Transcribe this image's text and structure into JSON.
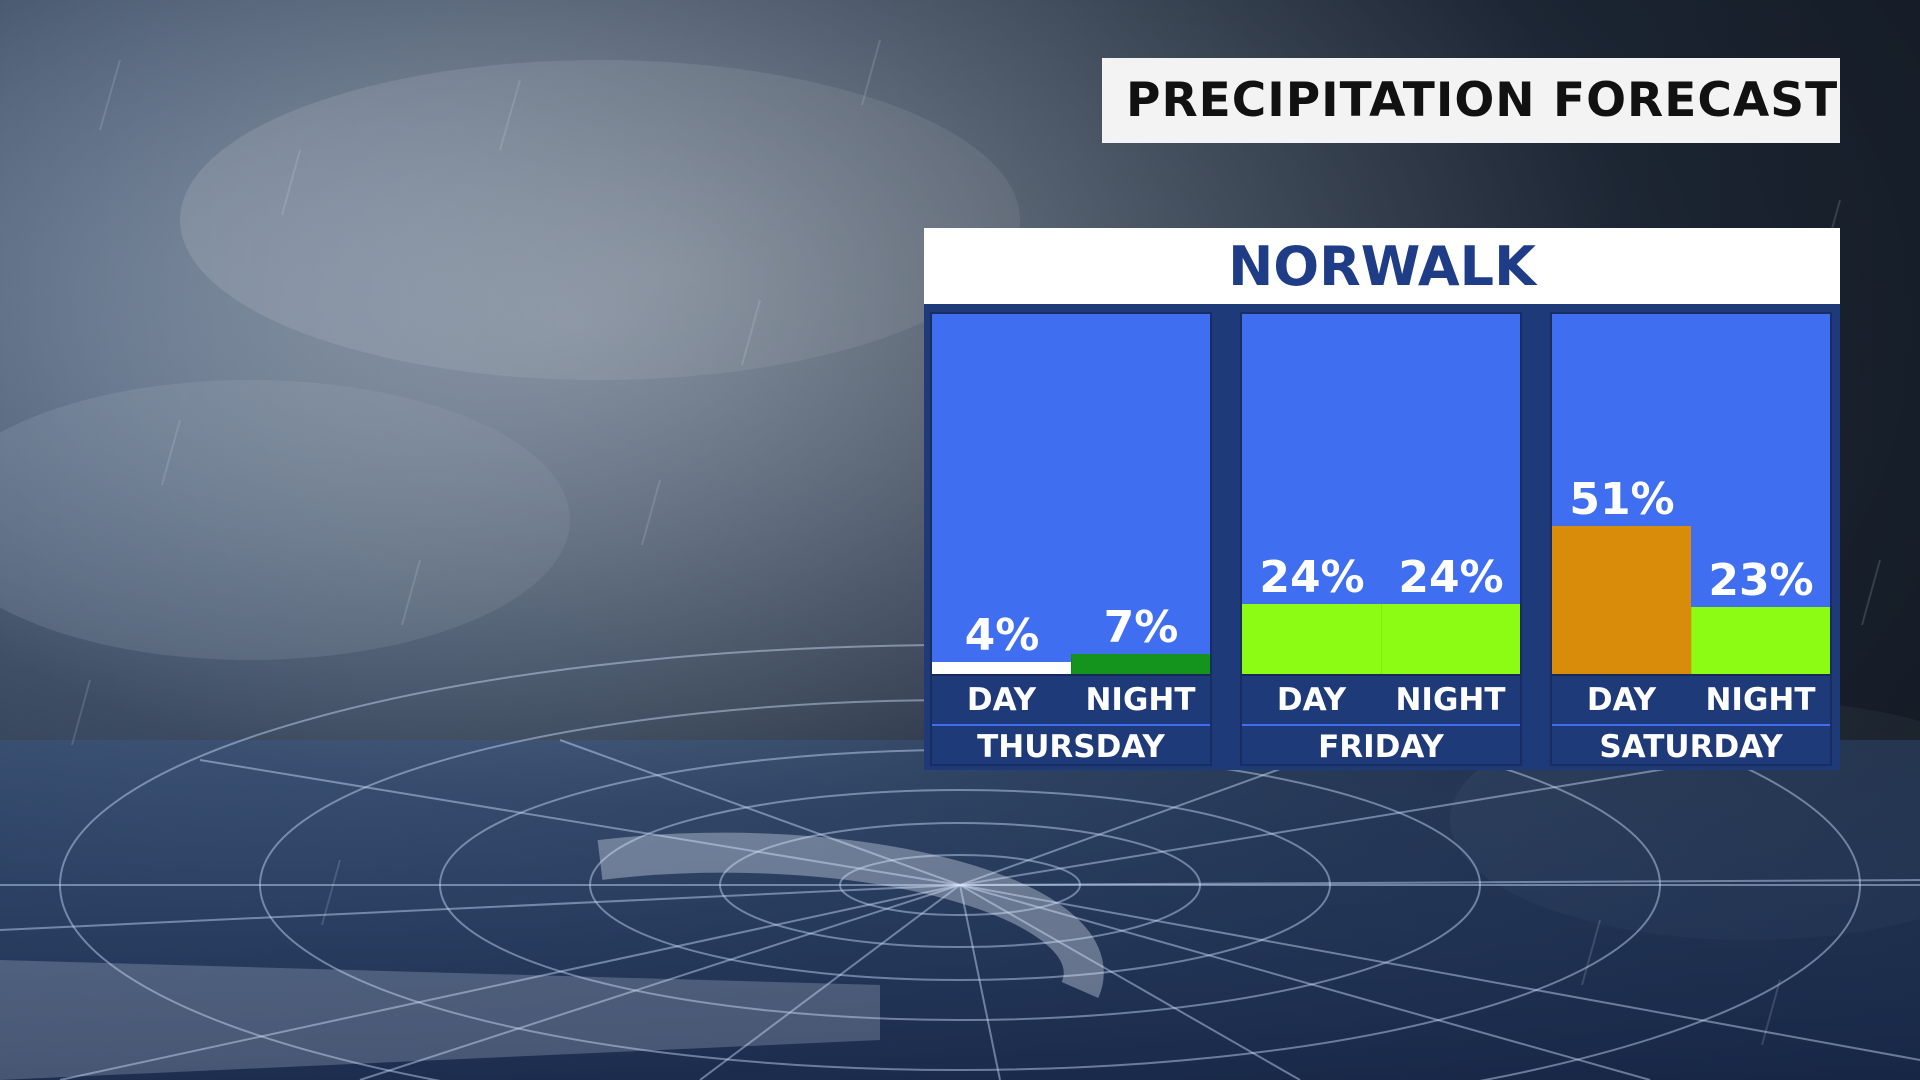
{
  "header": {
    "title": "PRECIPITATION FORECAST"
  },
  "chart_data": {
    "type": "bar",
    "title": "NORWALK",
    "ylim": [
      0,
      100
    ],
    "days": [
      {
        "name": "THURSDAY",
        "periods": [
          {
            "label": "DAY",
            "value": 4,
            "value_label": "4%",
            "color": "#ffffff"
          },
          {
            "label": "NIGHT",
            "value": 7,
            "value_label": "7%",
            "color": "#14941c"
          }
        ]
      },
      {
        "name": "FRIDAY",
        "periods": [
          {
            "label": "DAY",
            "value": 24,
            "value_label": "24%",
            "color": "#8cfc14"
          },
          {
            "label": "NIGHT",
            "value": 24,
            "value_label": "24%",
            "color": "#8cfc14"
          }
        ]
      },
      {
        "name": "SATURDAY",
        "periods": [
          {
            "label": "DAY",
            "value": 51,
            "value_label": "51%",
            "color": "#d88c0a"
          },
          {
            "label": "NIGHT",
            "value": 23,
            "value_label": "23%",
            "color": "#8cfc14"
          }
        ]
      }
    ]
  }
}
